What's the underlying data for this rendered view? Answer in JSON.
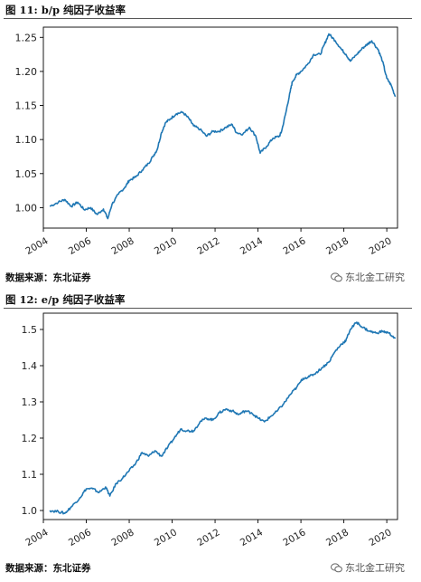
{
  "figures": [
    {
      "title": "图 11:  b/p 纯因子收益率",
      "source": "数据来源：东北证券",
      "watermark": "东北金工研究"
    },
    {
      "title": "图 12:  e/p 纯因子收益率",
      "source": "数据来源：东北证券",
      "watermark": "东北金工研究"
    }
  ],
  "colors": {
    "line": "#1f77b4",
    "axis": "#000000",
    "rule": "#555555"
  },
  "chart_data": [
    {
      "type": "line",
      "title": "b/p 纯因子收益率",
      "xlabel": "",
      "ylabel": "",
      "xlim": [
        2004.0,
        2020.5
      ],
      "ylim": [
        0.97,
        1.265
      ],
      "x_ticks": [
        "2004",
        "2006",
        "2008",
        "2010",
        "2012",
        "2014",
        "2016",
        "2018",
        "2020"
      ],
      "y_ticks": [
        "1.00",
        "1.05",
        "1.10",
        "1.15",
        "1.20",
        "1.25"
      ],
      "grid": false,
      "series": [
        {
          "x": [
            2004.3,
            2004.7,
            2005.0,
            2005.3,
            2005.6,
            2005.9,
            2006.2,
            2006.5,
            2006.8,
            2007.0,
            2007.2,
            2007.5,
            2007.8,
            2008.0,
            2008.3,
            2008.6,
            2008.9,
            2009.1,
            2009.3,
            2009.5,
            2009.7,
            2009.9,
            2010.2,
            2010.5,
            2010.8,
            2011.0,
            2011.3,
            2011.6,
            2011.9,
            2012.2,
            2012.5,
            2012.8,
            2013.0,
            2013.3,
            2013.6,
            2013.9,
            2014.1,
            2014.4,
            2014.7,
            2015.0,
            2015.1,
            2015.3,
            2015.5,
            2015.6,
            2015.8,
            2016.0,
            2016.3,
            2016.6,
            2016.9,
            2017.1,
            2017.3,
            2017.6,
            2017.9,
            2018.1,
            2018.3,
            2018.6,
            2018.9,
            2019.1,
            2019.3,
            2019.6,
            2019.8,
            2020.0,
            2020.2,
            2020.4
          ],
          "y": [
            1.002,
            1.008,
            1.012,
            1.002,
            1.008,
            0.997,
            1.0,
            0.99,
            0.998,
            0.984,
            1.005,
            1.02,
            1.03,
            1.04,
            1.045,
            1.055,
            1.065,
            1.075,
            1.085,
            1.11,
            1.125,
            1.13,
            1.138,
            1.14,
            1.13,
            1.12,
            1.115,
            1.105,
            1.112,
            1.112,
            1.118,
            1.122,
            1.11,
            1.108,
            1.118,
            1.105,
            1.08,
            1.09,
            1.102,
            1.105,
            1.112,
            1.14,
            1.17,
            1.185,
            1.195,
            1.2,
            1.21,
            1.225,
            1.225,
            1.24,
            1.255,
            1.245,
            1.232,
            1.225,
            1.215,
            1.225,
            1.235,
            1.24,
            1.245,
            1.232,
            1.215,
            1.19,
            1.18,
            1.163
          ]
        }
      ]
    },
    {
      "type": "line",
      "title": "e/p 纯因子收益率",
      "xlabel": "",
      "ylabel": "",
      "xlim": [
        2004.0,
        2020.5
      ],
      "ylim": [
        0.975,
        1.545
      ],
      "x_ticks": [
        "2004",
        "2006",
        "2008",
        "2010",
        "2012",
        "2014",
        "2016",
        "2018",
        "2020"
      ],
      "y_ticks": [
        "1.0",
        "1.1",
        "1.2",
        "1.3",
        "1.4",
        "1.5"
      ],
      "grid": false,
      "series": [
        {
          "x": [
            2004.3,
            2004.7,
            2005.0,
            2005.3,
            2005.7,
            2006.0,
            2006.3,
            2006.6,
            2006.9,
            2007.1,
            2007.4,
            2007.7,
            2008.0,
            2008.3,
            2008.6,
            2008.9,
            2009.2,
            2009.5,
            2009.8,
            2010.1,
            2010.4,
            2010.7,
            2011.0,
            2011.3,
            2011.6,
            2011.9,
            2012.2,
            2012.5,
            2012.8,
            2013.1,
            2013.4,
            2013.7,
            2014.0,
            2014.3,
            2014.6,
            2014.9,
            2015.2,
            2015.5,
            2015.8,
            2016.1,
            2016.4,
            2016.7,
            2017.0,
            2017.3,
            2017.6,
            2017.9,
            2018.1,
            2018.3,
            2018.6,
            2018.9,
            2019.2,
            2019.5,
            2019.8,
            2020.1,
            2020.4
          ],
          "y": [
            1.0,
            0.997,
            0.992,
            1.01,
            1.035,
            1.06,
            1.06,
            1.05,
            1.065,
            1.04,
            1.075,
            1.09,
            1.11,
            1.13,
            1.16,
            1.15,
            1.165,
            1.15,
            1.175,
            1.2,
            1.225,
            1.22,
            1.22,
            1.245,
            1.255,
            1.25,
            1.27,
            1.28,
            1.275,
            1.265,
            1.275,
            1.27,
            1.255,
            1.245,
            1.26,
            1.275,
            1.295,
            1.32,
            1.34,
            1.365,
            1.37,
            1.38,
            1.395,
            1.41,
            1.44,
            1.46,
            1.47,
            1.5,
            1.52,
            1.505,
            1.495,
            1.49,
            1.495,
            1.49,
            1.475
          ]
        }
      ]
    }
  ]
}
